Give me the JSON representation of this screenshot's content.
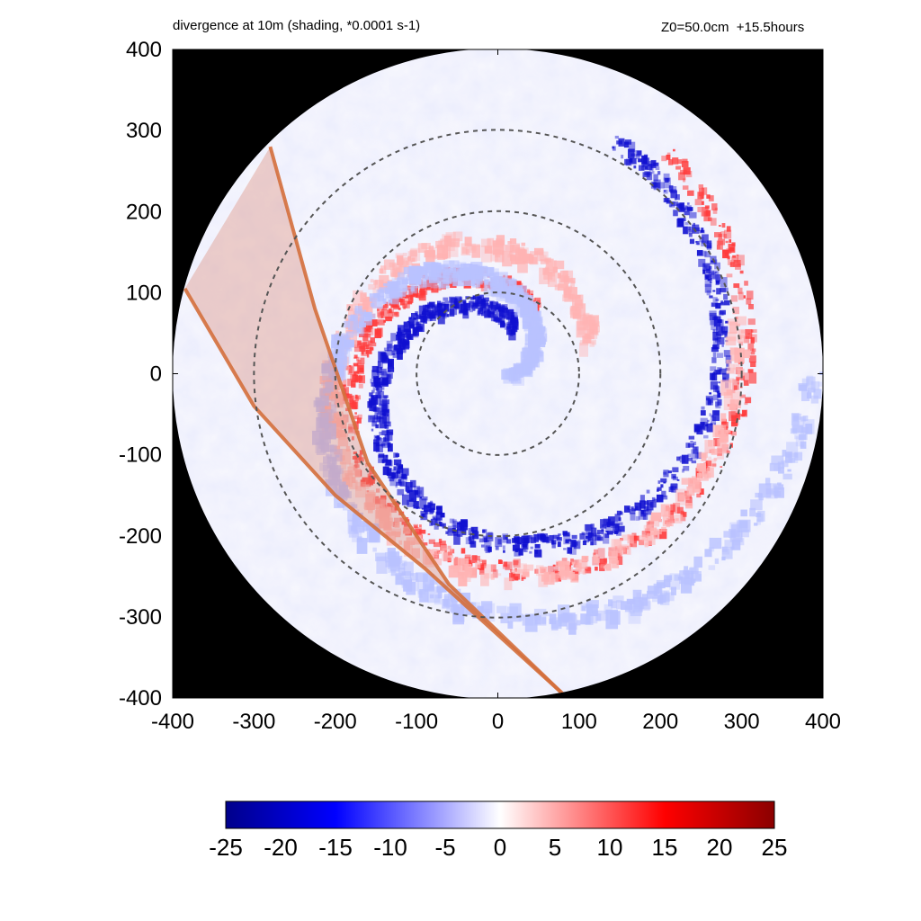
{
  "chart_data": {
    "type": "heatmap",
    "title": "divergence at 10m (shading, *0.0001 s-1)",
    "subtitle": "Z0=50.0cm  +15.5hours",
    "xlim": [
      -400,
      400
    ],
    "ylim": [
      -400,
      400
    ],
    "x_ticks": [
      "-400",
      "-300",
      "-200",
      "-100",
      "0",
      "100",
      "200",
      "300",
      "400"
    ],
    "y_ticks": [
      "400",
      "300",
      "200",
      "100",
      "0",
      "-100",
      "-200",
      "-300",
      "-400"
    ],
    "grid": false,
    "domain_radius": 400,
    "range_rings": [
      100,
      200,
      300
    ],
    "colorbar": {
      "min": -25,
      "max": 25,
      "ticks": [
        "-25",
        "-20",
        "-15",
        "-10",
        "-5",
        "0",
        "5",
        "10",
        "15",
        "20",
        "25"
      ],
      "colors": [
        "#00008b",
        "#0000ff",
        "#ffffff",
        "#ff0000",
        "#8b0000"
      ]
    },
    "shaded_swath": {
      "color": "#d9826a",
      "edge_a": [
        [
          -280,
          280
        ],
        [
          -225,
          80
        ],
        [
          -160,
          -110
        ],
        [
          -60,
          -260
        ],
        [
          80,
          -395
        ]
      ],
      "edge_b": [
        [
          -385,
          105
        ],
        [
          -300,
          -40
        ],
        [
          -200,
          -150
        ],
        [
          -90,
          -240
        ],
        [
          80,
          -395
        ]
      ]
    },
    "features": {
      "convergence_band": {
        "sign": "negative",
        "approx_value": -20
      },
      "divergence_band": {
        "sign": "positive",
        "approx_value": 15
      }
    }
  }
}
